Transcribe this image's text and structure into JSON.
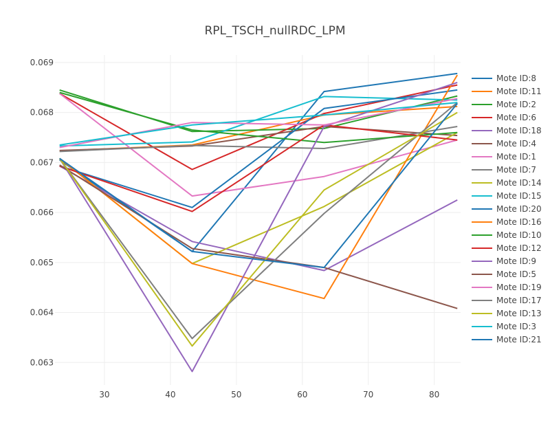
{
  "chart_data": {
    "type": "line",
    "title": "RPL_TSCH_nullRDC_LPM",
    "xlabel": "",
    "ylabel": "",
    "xlim": [
      22.5,
      84
    ],
    "ylim": [
      0.06255,
      0.06915
    ],
    "x_ticks": [
      30,
      40,
      50,
      60,
      70,
      80
    ],
    "y_ticks": [
      0.063,
      0.064,
      0.065,
      0.066,
      0.067,
      0.068,
      0.069
    ],
    "grid": true,
    "legend_position": "right",
    "series": [
      {
        "name": "Mote ID:8",
        "color": "#1f77b4",
        "x": [
          23.2,
          43.3,
          63.3,
          83.5
        ],
        "y": [
          0.06705,
          0.06522,
          0.06842,
          0.06878
        ]
      },
      {
        "name": "Mote ID:11",
        "color": "#ff7f0e",
        "x": [
          23.2,
          43.3,
          63.3,
          83.5
        ],
        "y": [
          0.06723,
          0.06735,
          0.06795,
          0.06812
        ]
      },
      {
        "name": "Mote ID:2",
        "color": "#2ca02c",
        "x": [
          23.2,
          43.3,
          63.3,
          83.5
        ],
        "y": [
          0.06845,
          0.06762,
          0.06768,
          0.06833
        ]
      },
      {
        "name": "Mote ID:6",
        "color": "#d62728",
        "x": [
          23.2,
          43.3,
          63.3,
          83.5
        ],
        "y": [
          0.06838,
          0.06686,
          0.06798,
          0.06855
        ]
      },
      {
        "name": "Mote ID:18",
        "color": "#9467bd",
        "x": [
          23.2,
          43.3,
          63.3,
          83.5
        ],
        "y": [
          0.06693,
          0.06542,
          0.06484,
          0.06625
        ]
      },
      {
        "name": "Mote ID:4",
        "color": "#8c564b",
        "x": [
          23.2,
          43.3,
          63.3,
          83.5
        ],
        "y": [
          0.06724,
          0.06733,
          0.06772,
          0.06754
        ]
      },
      {
        "name": "Mote ID:1",
        "color": "#e377c2",
        "x": [
          23.2,
          43.3,
          63.3,
          83.5
        ],
        "y": [
          0.06838,
          0.06633,
          0.06672,
          0.06745
        ]
      },
      {
        "name": "Mote ID:7",
        "color": "#7f7f7f",
        "x": [
          23.2,
          43.3,
          63.3,
          83.5
        ],
        "y": [
          0.06722,
          0.06734,
          0.06728,
          0.06772
        ]
      },
      {
        "name": "Mote ID:14",
        "color": "#bcbd22",
        "x": [
          23.2,
          43.3,
          63.3,
          83.5
        ],
        "y": [
          0.06708,
          0.06498,
          0.06612,
          0.0676
        ]
      },
      {
        "name": "Mote ID:15",
        "color": "#17becf",
        "x": [
          23.2,
          43.3,
          63.3,
          83.5
        ],
        "y": [
          0.06733,
          0.06741,
          0.06832,
          0.06825
        ]
      },
      {
        "name": "Mote ID:20",
        "color": "#1f77b4",
        "x": [
          23.2,
          43.3,
          63.3,
          83.5
        ],
        "y": [
          0.06693,
          0.0661,
          0.06808,
          0.06845
        ]
      },
      {
        "name": "Mote ID:16",
        "color": "#ff7f0e",
        "x": [
          23.2,
          43.3,
          63.3,
          83.5
        ],
        "y": [
          0.06708,
          0.06498,
          0.06428,
          0.06875
        ]
      },
      {
        "name": "Mote ID:10",
        "color": "#2ca02c",
        "x": [
          23.2,
          43.3,
          63.3,
          83.5
        ],
        "y": [
          0.0684,
          0.06765,
          0.0674,
          0.0676
        ]
      },
      {
        "name": "Mote ID:12",
        "color": "#d62728",
        "x": [
          23.2,
          43.3,
          63.3,
          83.5
        ],
        "y": [
          0.06693,
          0.06602,
          0.06775,
          0.06745
        ]
      },
      {
        "name": "Mote ID:9",
        "color": "#9467bd",
        "x": [
          23.2,
          43.3,
          63.3,
          83.5
        ],
        "y": [
          0.06708,
          0.06282,
          0.06772,
          0.0686
        ]
      },
      {
        "name": "Mote ID:5",
        "color": "#8c564b",
        "x": [
          23.2,
          43.3,
          63.3,
          83.5
        ],
        "y": [
          0.06695,
          0.06528,
          0.0649,
          0.06408
        ]
      },
      {
        "name": "Mote ID:19",
        "color": "#e377c2",
        "x": [
          23.2,
          43.3,
          63.3,
          83.5
        ],
        "y": [
          0.0673,
          0.0678,
          0.06775,
          0.06828
        ]
      },
      {
        "name": "Mote ID:17",
        "color": "#7f7f7f",
        "x": [
          23.2,
          43.3,
          63.3,
          83.5
        ],
        "y": [
          0.06708,
          0.06348,
          0.06598,
          0.0682
        ]
      },
      {
        "name": "Mote ID:13",
        "color": "#bcbd22",
        "x": [
          23.2,
          43.3,
          63.3,
          83.5
        ],
        "y": [
          0.06708,
          0.06333,
          0.06645,
          0.068
        ]
      },
      {
        "name": "Mote ID:3",
        "color": "#17becf",
        "x": [
          23.2,
          43.3,
          63.3,
          83.5
        ],
        "y": [
          0.06735,
          0.06775,
          0.06795,
          0.0682
        ]
      },
      {
        "name": "Mote ID:21",
        "color": "#1f77b4",
        "x": [
          23.2,
          43.3,
          63.3,
          83.5
        ],
        "y": [
          0.06708,
          0.06522,
          0.0649,
          0.06818
        ]
      }
    ]
  }
}
